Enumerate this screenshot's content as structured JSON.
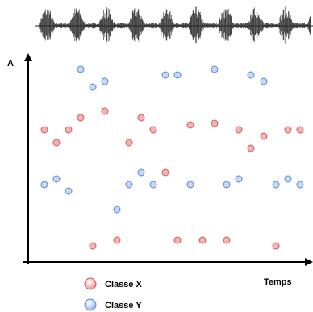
{
  "chart_data": {
    "type": "scatter",
    "x_label": "Temps",
    "y_label": "A",
    "xlim": [
      0,
      353
    ],
    "ylim": [
      0,
      257
    ],
    "series": [
      {
        "name": "Classe X",
        "color": "#f2b3b3",
        "stroke": "#d45a5a",
        "x": [
          20,
          35,
          50,
          65,
          80,
          95,
          110,
          125,
          140,
          155,
          170,
          185,
          201,
          216,
          231,
          246,
          261,
          276,
          292,
          307,
          322,
          337
        ],
        "values": [
          164,
          148,
          164,
          179,
          20,
          187,
          27,
          148,
          179,
          164,
          111,
          27,
          170,
          27,
          172,
          27,
          164,
          141,
          156,
          20,
          164,
          164
        ]
      },
      {
        "name": "Classe Y",
        "color": "#c4d9f5",
        "stroke": "#5f86cc",
        "x": [
          20,
          35,
          50,
          65,
          80,
          95,
          110,
          125,
          140,
          155,
          170,
          185,
          201,
          231,
          246,
          261,
          276,
          292,
          307,
          322,
          337
        ],
        "values": [
          96,
          103,
          88,
          239,
          217,
          224,
          65,
          96,
          111,
          96,
          232,
          232,
          96,
          239,
          96,
          103,
          232,
          224,
          96,
          103,
          96
        ]
      }
    ]
  }
}
